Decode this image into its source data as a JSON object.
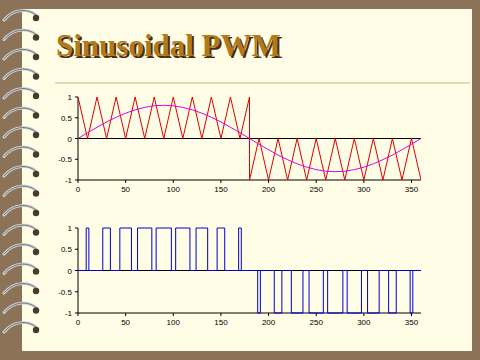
{
  "slide": {
    "title": "Sinusoidal PWM"
  },
  "chart_data": [
    {
      "type": "line",
      "xlim": [
        0,
        360
      ],
      "xticks": [
        0,
        50,
        100,
        150,
        200,
        250,
        300,
        350
      ],
      "ylim": [
        -1,
        1
      ],
      "yticks": [
        -1,
        -0.5,
        0,
        0.5,
        1
      ],
      "series": [
        {
          "color": "#e00000",
          "x": [
            0,
            10,
            20,
            30,
            40,
            50,
            60,
            70,
            80,
            90,
            100,
            110,
            120,
            130,
            140,
            150,
            160,
            170,
            180,
            180,
            190,
            200,
            210,
            220,
            230,
            240,
            250,
            260,
            270,
            280,
            290,
            300,
            310,
            320,
            330,
            340,
            350,
            360
          ],
          "values": [
            1,
            0,
            1,
            0,
            1,
            0,
            1,
            0,
            1,
            0,
            1,
            0,
            1,
            0,
            1,
            0,
            1,
            0,
            1,
            -1,
            0,
            -1,
            0,
            -1,
            0,
            -1,
            0,
            -1,
            0,
            -1,
            0,
            -1,
            0,
            -1,
            0,
            -1,
            0,
            -1
          ]
        },
        {
          "color": "#e000e0",
          "x": [
            0,
            10,
            20,
            30,
            40,
            50,
            60,
            70,
            80,
            90,
            100,
            110,
            120,
            130,
            140,
            150,
            160,
            170,
            180,
            190,
            200,
            210,
            220,
            230,
            240,
            250,
            260,
            270,
            280,
            290,
            300,
            310,
            320,
            330,
            340,
            350,
            360
          ],
          "values": [
            0,
            0.14,
            0.27,
            0.4,
            0.51,
            0.61,
            0.69,
            0.75,
            0.79,
            0.8,
            0.79,
            0.75,
            0.69,
            0.61,
            0.51,
            0.4,
            0.27,
            0.14,
            0,
            -0.14,
            -0.27,
            -0.4,
            -0.51,
            -0.61,
            -0.69,
            -0.75,
            -0.79,
            -0.8,
            -0.79,
            -0.75,
            -0.69,
            -0.61,
            -0.51,
            -0.4,
            -0.27,
            -0.14,
            0
          ]
        }
      ]
    },
    {
      "type": "line",
      "xlim": [
        0,
        360
      ],
      "xticks": [
        0,
        50,
        100,
        150,
        200,
        250,
        300,
        350
      ],
      "ylim": [
        -1,
        1
      ],
      "yticks": [
        -1,
        -0.5,
        0,
        0.5,
        1
      ],
      "series": [
        {
          "color": "#0000d0",
          "x": [
            0,
            8.6,
            8.6,
            11.4,
            11.4,
            26,
            26,
            34,
            34,
            43.9,
            43.9,
            56.1,
            56.1,
            62.5,
            62.5,
            77.5,
            77.5,
            82,
            82,
            98,
            98,
            102.5,
            102.5,
            117.5,
            117.5,
            123.9,
            123.9,
            136.1,
            136.1,
            146,
            146,
            154,
            154,
            168.6,
            168.6,
            171.4,
            171.4,
            188.6,
            188.6,
            191.4,
            191.4,
            206,
            206,
            214,
            214,
            223.9,
            223.9,
            236.1,
            236.1,
            242.5,
            242.5,
            257.5,
            257.5,
            262,
            262,
            278,
            278,
            282.5,
            282.5,
            297.5,
            297.5,
            303.9,
            303.9,
            316.1,
            316.1,
            326,
            326,
            334,
            334,
            348.6,
            348.6,
            351.4,
            351.4,
            360
          ],
          "values": [
            0,
            0,
            1,
            1,
            0,
            0,
            1,
            1,
            0,
            0,
            1,
            1,
            0,
            0,
            1,
            1,
            0,
            0,
            1,
            1,
            0,
            0,
            1,
            1,
            0,
            0,
            1,
            1,
            0,
            0,
            1,
            1,
            0,
            0,
            1,
            1,
            0,
            0,
            -1,
            -1,
            0,
            0,
            -1,
            -1,
            0,
            0,
            -1,
            -1,
            0,
            0,
            -1,
            -1,
            0,
            0,
            -1,
            -1,
            0,
            0,
            -1,
            -1,
            0,
            0,
            -1,
            -1,
            0,
            0,
            -1,
            -1,
            0,
            0,
            -1,
            -1,
            0,
            0
          ]
        }
      ]
    }
  ]
}
